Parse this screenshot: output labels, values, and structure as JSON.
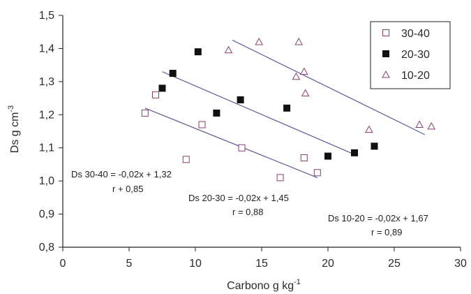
{
  "chart_data": {
    "type": "scatter",
    "title": "",
    "xlabel": "Carbono g kg",
    "xlabel_sup": "-1",
    "ylabel": "Ds g cm",
    "ylabel_sup": "-3",
    "xlim": [
      0,
      30
    ],
    "ylim": [
      0.8,
      1.5
    ],
    "x_ticks": [
      0,
      5,
      10,
      15,
      20,
      25,
      30
    ],
    "x_tick_labels": [
      "0",
      "5",
      "10",
      "15",
      "20",
      "25",
      "30"
    ],
    "y_ticks": [
      0.8,
      0.9,
      1.0,
      1.1,
      1.2,
      1.3,
      1.4,
      1.5
    ],
    "y_tick_labels": [
      "0,8",
      "0,9",
      "1,0",
      "1,1",
      "1,2",
      "1,3",
      "1,4",
      "1,5"
    ],
    "grid": false,
    "legend_position": "top-right",
    "series": [
      {
        "name": "30-40",
        "marker": "open-square",
        "color": "#8a3c6e",
        "points": [
          [
            6.2,
            1.205
          ],
          [
            7.0,
            1.26
          ],
          [
            9.3,
            1.065
          ],
          [
            10.5,
            1.17
          ],
          [
            13.5,
            1.1
          ],
          [
            16.4,
            1.01
          ],
          [
            18.2,
            1.07
          ],
          [
            19.2,
            1.025
          ]
        ],
        "trend": {
          "x": [
            6.2,
            19.2
          ],
          "y": [
            1.22,
            1.01
          ]
        }
      },
      {
        "name": "20-30",
        "marker": "filled-square",
        "color": "#111111",
        "points": [
          [
            7.5,
            1.28
          ],
          [
            8.3,
            1.325
          ],
          [
            10.2,
            1.39
          ],
          [
            11.6,
            1.205
          ],
          [
            13.4,
            1.245
          ],
          [
            16.9,
            1.22
          ],
          [
            20.0,
            1.075
          ],
          [
            22.0,
            1.085
          ],
          [
            23.5,
            1.105
          ]
        ],
        "trend": {
          "x": [
            7.5,
            22.0
          ],
          "y": [
            1.33,
            1.08
          ]
        }
      },
      {
        "name": "10-20",
        "marker": "open-triangle",
        "color": "#8a3c6e",
        "points": [
          [
            12.5,
            1.395
          ],
          [
            14.8,
            1.42
          ],
          [
            17.6,
            1.315
          ],
          [
            17.8,
            1.42
          ],
          [
            18.2,
            1.33
          ],
          [
            18.3,
            1.265
          ],
          [
            23.1,
            1.155
          ],
          [
            26.9,
            1.17
          ],
          [
            27.8,
            1.165
          ]
        ],
        "trend": {
          "x": [
            12.8,
            27.3
          ],
          "y": [
            1.425,
            1.14
          ]
        }
      }
    ],
    "annotations": [
      {
        "line1": "Ds 30-40 = -0,02x + 1,32",
        "line2": "r + 0,85"
      },
      {
        "line1": "Ds 20-30 = -0,02x + 1,45",
        "line2": "r = 0,88"
      },
      {
        "line1": "Ds 10-20 = -0,02x + 1,67",
        "line2": "r = 0,89"
      }
    ],
    "colors": {
      "axis": "#222222",
      "trend": "#5b5b9e",
      "legend_border": "#222222"
    }
  }
}
